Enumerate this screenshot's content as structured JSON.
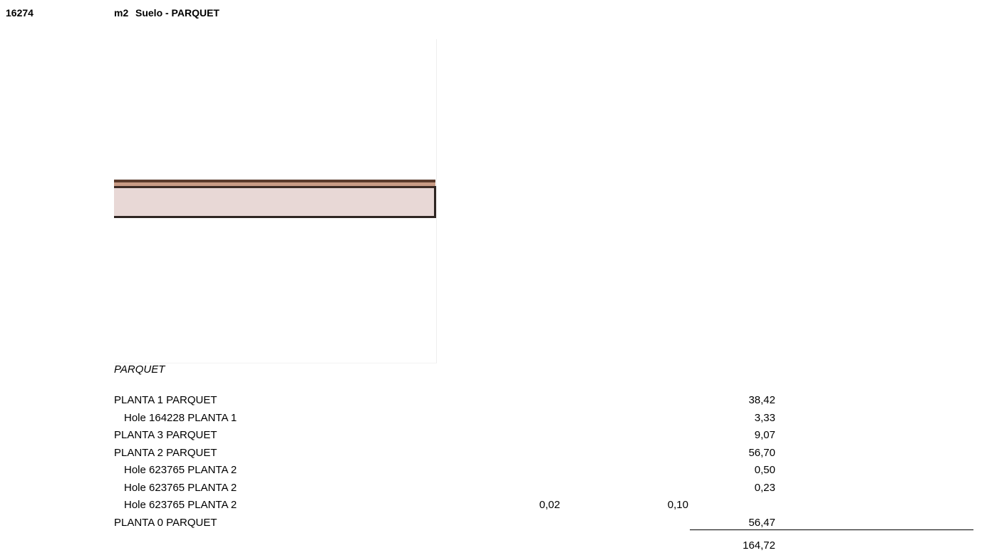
{
  "header": {
    "code": "16274",
    "unit": "m2",
    "title": "Suelo - PARQUET"
  },
  "section": "PARQUET",
  "rows": [
    {
      "label": "PLANTA 1 PARQUET",
      "level": 0,
      "quantity": "38,42"
    },
    {
      "label": "Hole 164228 PLANTA 1",
      "level": 1,
      "quantity": "3,33"
    },
    {
      "label": "PLANTA 3 PARQUET",
      "level": 0,
      "quantity": "9,07"
    },
    {
      "label": "PLANTA 2 PARQUET",
      "level": 0,
      "quantity": "56,70"
    },
    {
      "label": "Hole 623765 PLANTA 2",
      "level": 1,
      "quantity": "0,50"
    },
    {
      "label": "Hole 623765 PLANTA 2",
      "level": 1,
      "quantity": "0,23"
    },
    {
      "label": "Hole 623765 PLANTA 2",
      "level": 1,
      "width": "0,02",
      "height": "0,10"
    },
    {
      "label": "PLANTA 0 PARQUET",
      "level": 0,
      "quantity": "56,47"
    }
  ],
  "total": "164,72"
}
